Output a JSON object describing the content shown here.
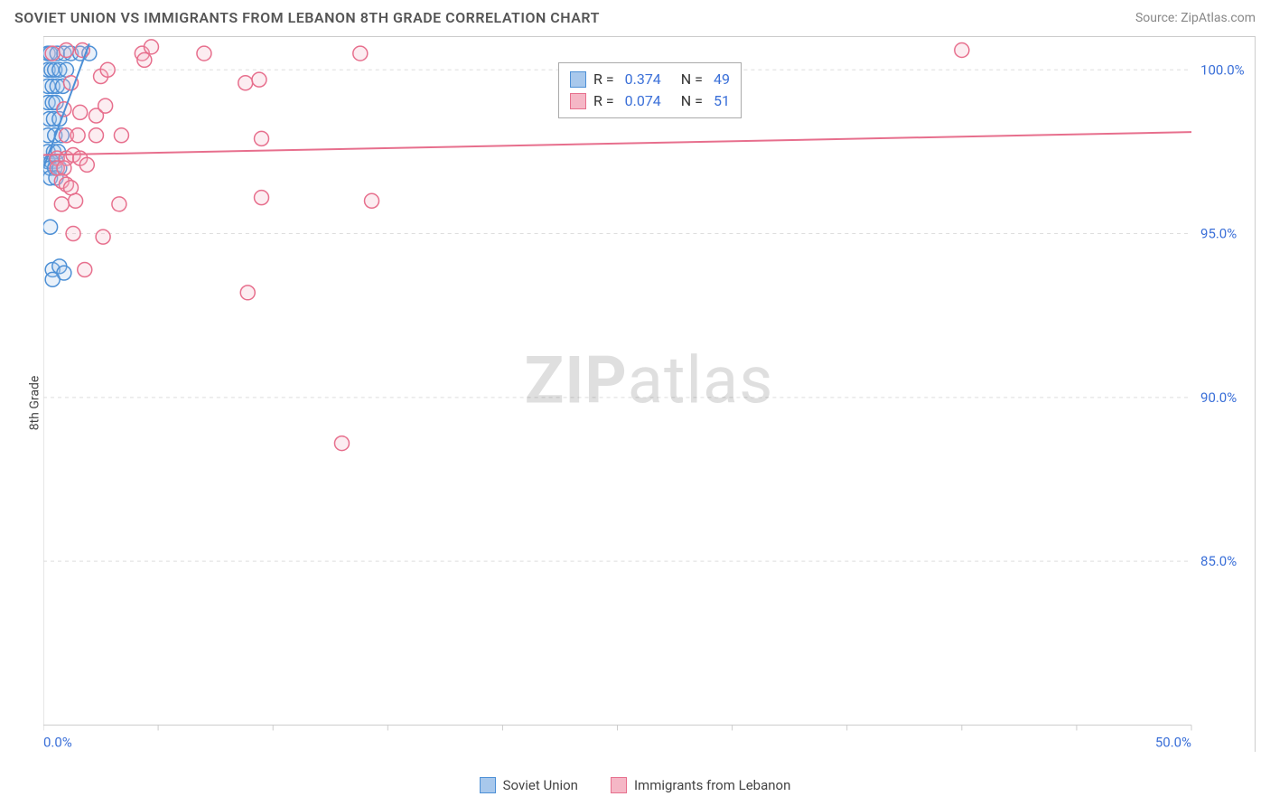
{
  "header": {
    "title": "SOVIET UNION VS IMMIGRANTS FROM LEBANON 8TH GRADE CORRELATION CHART",
    "source": "Source: ZipAtlas.com"
  },
  "watermark": {
    "bold": "ZIP",
    "rest": "atlas"
  },
  "chart": {
    "type": "scatter",
    "ylabel": "8th Grade",
    "background_color": "#ffffff",
    "grid_color": "#dddddd",
    "axis_color": "#cccccc",
    "tick_color": "#cccccc",
    "text_color": "#444444",
    "value_color": "#3a6fd8",
    "xlim": [
      0,
      50
    ],
    "ylim": [
      80,
      101
    ],
    "xticks": [
      0,
      5,
      10,
      15,
      20,
      25,
      30,
      35,
      40,
      45,
      50
    ],
    "xtick_labels": {
      "0": "0.0%",
      "50": "50.0%"
    },
    "yticks": [
      85,
      90,
      95,
      100
    ],
    "ytick_labels": {
      "85": "85.0%",
      "90": "90.0%",
      "95": "95.0%",
      "100": "100.0%"
    },
    "marker_radius": 8,
    "marker_stroke_width": 1.5,
    "marker_fill_opacity": 0.25,
    "line_width": 2,
    "series": [
      {
        "name": "Soviet Union",
        "color_stroke": "#4d90d6",
        "color_fill": "#a8c8ec",
        "R": "0.374",
        "N": "49",
        "trend": {
          "x1": 0,
          "y1": 97.0,
          "x2": 2.0,
          "y2": 100.8
        },
        "points": [
          [
            0.2,
            100.5
          ],
          [
            0.3,
            100.5
          ],
          [
            0.6,
            100.5
          ],
          [
            0.9,
            100.5
          ],
          [
            1.2,
            100.5
          ],
          [
            1.6,
            100.5
          ],
          [
            2.0,
            100.5
          ],
          [
            0.2,
            100.0
          ],
          [
            0.35,
            100.0
          ],
          [
            0.5,
            100.0
          ],
          [
            0.7,
            100.0
          ],
          [
            1.0,
            100.0
          ],
          [
            0.2,
            99.5
          ],
          [
            0.4,
            99.5
          ],
          [
            0.6,
            99.5
          ],
          [
            0.85,
            99.5
          ],
          [
            0.2,
            99.0
          ],
          [
            0.4,
            99.0
          ],
          [
            0.55,
            99.0
          ],
          [
            0.25,
            98.5
          ],
          [
            0.45,
            98.5
          ],
          [
            0.7,
            98.5
          ],
          [
            0.2,
            98.0
          ],
          [
            0.5,
            98.0
          ],
          [
            0.8,
            98.0
          ],
          [
            0.2,
            97.5
          ],
          [
            0.45,
            97.5
          ],
          [
            0.65,
            97.5
          ],
          [
            0.2,
            97.2
          ],
          [
            0.35,
            97.2
          ],
          [
            0.55,
            97.2
          ],
          [
            0.3,
            97.0
          ],
          [
            0.5,
            97.0
          ],
          [
            0.7,
            97.0
          ],
          [
            0.3,
            96.7
          ],
          [
            0.55,
            96.7
          ],
          [
            0.3,
            95.2
          ],
          [
            0.4,
            93.9
          ],
          [
            0.7,
            94.0
          ],
          [
            0.9,
            93.8
          ],
          [
            0.4,
            93.6
          ]
        ]
      },
      {
        "name": "Immigrants from Lebanon",
        "color_stroke": "#e76f8d",
        "color_fill": "#f5b7c6",
        "R": "0.074",
        "N": "51",
        "trend": {
          "x1": 0,
          "y1": 97.4,
          "x2": 50,
          "y2": 98.1
        },
        "points": [
          [
            0.4,
            100.5
          ],
          [
            1.0,
            100.6
          ],
          [
            1.7,
            100.6
          ],
          [
            4.3,
            100.5
          ],
          [
            4.7,
            100.7
          ],
          [
            4.4,
            100.3
          ],
          [
            7.0,
            100.5
          ],
          [
            13.8,
            100.5
          ],
          [
            40.0,
            100.6
          ],
          [
            1.2,
            99.6
          ],
          [
            2.5,
            99.8
          ],
          [
            2.8,
            100.0
          ],
          [
            8.8,
            99.6
          ],
          [
            9.4,
            99.7
          ],
          [
            0.9,
            98.8
          ],
          [
            1.6,
            98.7
          ],
          [
            2.3,
            98.6
          ],
          [
            2.7,
            98.9
          ],
          [
            1.0,
            98.0
          ],
          [
            1.5,
            98.0
          ],
          [
            2.3,
            98.0
          ],
          [
            3.4,
            98.0
          ],
          [
            9.5,
            97.9
          ],
          [
            0.6,
            97.3
          ],
          [
            1.0,
            97.3
          ],
          [
            1.3,
            97.4
          ],
          [
            1.6,
            97.3
          ],
          [
            1.9,
            97.1
          ],
          [
            0.6,
            97.0
          ],
          [
            0.9,
            97.0
          ],
          [
            0.8,
            96.6
          ],
          [
            1.0,
            96.5
          ],
          [
            1.2,
            96.4
          ],
          [
            0.8,
            95.9
          ],
          [
            1.4,
            96.0
          ],
          [
            3.3,
            95.9
          ],
          [
            9.5,
            96.1
          ],
          [
            14.3,
            96.0
          ],
          [
            1.3,
            95.0
          ],
          [
            2.6,
            94.9
          ],
          [
            1.8,
            93.9
          ],
          [
            8.9,
            93.2
          ],
          [
            13.0,
            88.6
          ]
        ]
      }
    ],
    "legend_top": {
      "border_color": "#aaaaaa",
      "rows": [
        {
          "swatch_fill": "#a8c8ec",
          "swatch_stroke": "#4d90d6",
          "R_label": "R =",
          "R": "0.374",
          "N_label": "N =",
          "N": "49"
        },
        {
          "swatch_fill": "#f5b7c6",
          "swatch_stroke": "#e76f8d",
          "R_label": "R =",
          "R": "0.074",
          "N_label": "N =",
          "N": "51"
        }
      ]
    },
    "legend_bottom": [
      {
        "swatch_fill": "#a8c8ec",
        "swatch_stroke": "#4d90d6",
        "label": "Soviet Union"
      },
      {
        "swatch_fill": "#f5b7c6",
        "swatch_stroke": "#e76f8d",
        "label": "Immigrants from Lebanon"
      }
    ]
  }
}
